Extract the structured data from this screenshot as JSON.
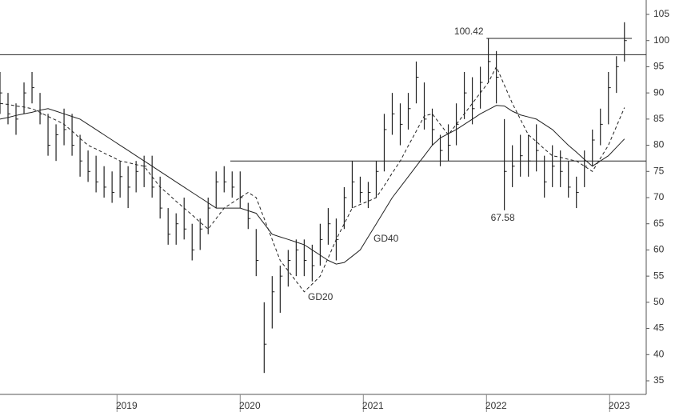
{
  "chart_data": {
    "type": "ohlc",
    "x": [
      2018.05,
      2018.115,
      2018.18,
      2018.245,
      2018.31,
      2018.375,
      2018.44,
      2018.505,
      2018.57,
      2018.635,
      2018.7,
      2018.765,
      2018.83,
      2018.895,
      2018.96,
      2019.025,
      2019.09,
      2019.155,
      2019.22,
      2019.285,
      2019.35,
      2019.415,
      2019.48,
      2019.545,
      2019.61,
      2019.675,
      2019.74,
      2019.805,
      2019.87,
      2019.935,
      2020.0,
      2020.065,
      2020.13,
      2020.195,
      2020.26,
      2020.325,
      2020.39,
      2020.455,
      2020.52,
      2020.585,
      2020.65,
      2020.715,
      2020.78,
      2020.845,
      2020.91,
      2020.975,
      2021.04,
      2021.105,
      2021.17,
      2021.235,
      2021.3,
      2021.365,
      2021.43,
      2021.495,
      2021.56,
      2021.625,
      2021.69,
      2021.755,
      2021.82,
      2021.885,
      2021.95,
      2022.015,
      2022.08,
      2022.145,
      2022.21,
      2022.275,
      2022.34,
      2022.405,
      2022.47,
      2022.535,
      2022.6,
      2022.665,
      2022.73,
      2022.795,
      2022.86,
      2022.925,
      2022.99,
      2023.055,
      2023.12
    ],
    "high": [
      94,
      90,
      88,
      92,
      94,
      90,
      86,
      84,
      87,
      86,
      82,
      79,
      78,
      76,
      75,
      77,
      76,
      77,
      78,
      78,
      74,
      68,
      67,
      70,
      65,
      66,
      70,
      75,
      76,
      75,
      75,
      69,
      64,
      50,
      55,
      57,
      60,
      62,
      62,
      61,
      65,
      68,
      66,
      72,
      77,
      74,
      73,
      77,
      86,
      90,
      88,
      90,
      96,
      92,
      87,
      82,
      84,
      88,
      94,
      93,
      95,
      100.42,
      98,
      85,
      80,
      82,
      82,
      84,
      78,
      80,
      79,
      77,
      74,
      79,
      83,
      87,
      94,
      97,
      103.5
    ],
    "low": [
      86,
      84,
      82,
      86,
      88,
      84,
      78,
      77,
      80,
      78,
      74,
      73,
      71,
      70,
      69,
      70,
      68,
      71,
      72,
      70,
      66,
      61,
      61,
      62,
      58,
      60,
      63,
      68,
      71,
      70,
      68,
      64,
      55,
      36.5,
      45,
      48,
      53,
      55,
      55,
      54,
      57,
      61,
      58,
      64,
      68,
      69,
      68,
      70,
      75,
      82,
      80,
      83,
      88,
      83,
      80,
      76,
      77,
      80,
      85,
      84,
      87,
      92,
      88,
      67.58,
      72,
      74,
      74,
      75,
      70,
      72,
      72,
      70,
      68,
      72,
      76,
      80,
      84,
      90,
      96
    ],
    "close": [
      90,
      86,
      85,
      90,
      91,
      86,
      80,
      82,
      83,
      80,
      77,
      75,
      73,
      72,
      71,
      74,
      72,
      75,
      76,
      72,
      68,
      63,
      65,
      64,
      60,
      64,
      68,
      73,
      73,
      72,
      70,
      66,
      58,
      42,
      52,
      55,
      58,
      60,
      58,
      57,
      62,
      65,
      62,
      70,
      73,
      71,
      71,
      75,
      83,
      86,
      84,
      87,
      93,
      85,
      83,
      79,
      80,
      84,
      90,
      87,
      92,
      96,
      93,
      75,
      76,
      78,
      77,
      79,
      73,
      76,
      75,
      72,
      71,
      76,
      81,
      84,
      91,
      95,
      100
    ],
    "series": [
      {
        "name": "GD20",
        "color": "#222222",
        "dashed": true,
        "values": [
          88,
          87.8,
          87.5,
          87.3,
          87,
          86.3,
          85.5,
          84.8,
          84,
          82.7,
          81.3,
          80,
          79.3,
          78.5,
          77.8,
          77,
          76.7,
          76.3,
          76,
          74,
          72,
          70.7,
          69.3,
          68,
          66.7,
          65.3,
          64,
          66,
          68,
          69,
          70,
          71,
          70,
          66,
          62,
          58,
          56,
          54,
          52,
          53.5,
          55,
          58.5,
          62,
          65,
          68,
          68.7,
          69.3,
          70,
          72.3,
          74.7,
          77,
          79.9,
          82.7,
          85.6,
          86,
          84,
          82,
          84,
          86,
          88,
          90,
          92,
          95,
          91.5,
          88,
          85,
          82,
          80.7,
          79.3,
          78,
          77.7,
          77.3,
          77,
          76,
          75,
          77.5,
          80,
          83.6,
          87.2
        ]
      },
      {
        "name": "GD40",
        "color": "#222222",
        "dashed": false,
        "values": [
          85,
          85.3,
          85.7,
          86,
          86.3,
          86.7,
          87,
          86.5,
          86,
          85.5,
          85,
          84,
          83,
          82,
          81,
          80,
          79,
          78,
          77,
          76,
          75,
          74,
          73,
          72,
          71,
          70,
          69,
          68,
          68,
          68,
          68,
          67.5,
          67,
          65,
          63,
          62.5,
          62,
          61.5,
          61,
          60,
          59,
          58,
          57.3,
          57.6,
          58.8,
          60,
          62.5,
          65,
          67.5,
          70,
          72,
          74,
          76,
          78,
          80,
          81.4,
          82.2,
          83,
          84,
          85,
          86,
          86.8,
          87.6,
          87.5,
          86.5,
          85.8,
          85.4,
          85,
          84,
          83,
          81.5,
          80,
          78.7,
          77.3,
          76,
          77,
          78,
          79.6,
          81.2
        ]
      }
    ],
    "levels": [
      {
        "value": 97.3
      },
      {
        "value": 100.42,
        "from": 2022.0
      },
      {
        "value": 77,
        "from": 2019.92
      }
    ],
    "xlim": [
      2018.05,
      2023.18
    ],
    "xticks": [
      {
        "value": 2019,
        "label": "2019"
      },
      {
        "value": 2020,
        "label": "2020"
      },
      {
        "value": 2021,
        "label": "2021"
      },
      {
        "value": 2022,
        "label": "2022"
      },
      {
        "value": 2023,
        "label": "2023"
      }
    ],
    "ylim": [
      35,
      105
    ],
    "yticks": [
      35,
      40,
      45,
      50,
      55,
      60,
      65,
      70,
      75,
      80,
      85,
      90,
      95,
      100,
      105
    ],
    "color": "#222222"
  }
}
